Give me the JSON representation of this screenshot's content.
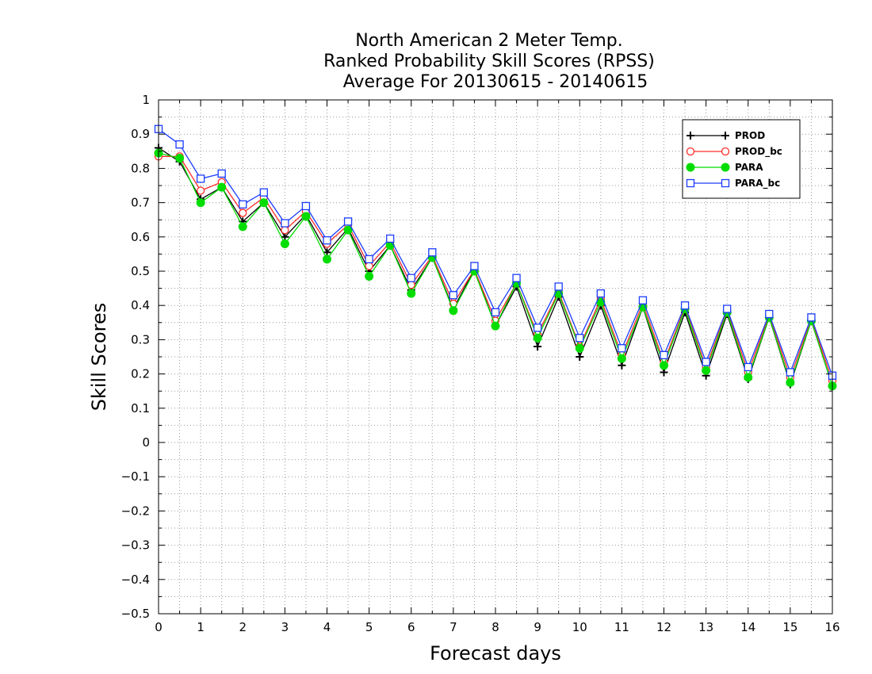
{
  "chart_data": {
    "type": "line",
    "title": [
      "North American 2 Meter Temp.",
      "Ranked Probability Skill Scores (RPSS)",
      "Average For 20130615 - 20140615"
    ],
    "xlabel": "Forecast days",
    "ylabel": "Skill Scores",
    "xlim": [
      0,
      16
    ],
    "ylim": [
      -0.5,
      1
    ],
    "x_ticks": [
      0,
      1,
      2,
      3,
      4,
      5,
      6,
      7,
      8,
      9,
      10,
      11,
      12,
      13,
      14,
      15,
      16
    ],
    "y_ticks": [
      -0.5,
      -0.4,
      -0.3,
      -0.2,
      -0.1,
      0,
      0.1,
      0.2,
      0.3,
      0.4,
      0.5,
      0.6,
      0.7,
      0.8,
      0.9,
      1
    ],
    "x_tick_labels": [
      "0",
      "1",
      "2",
      "3",
      "4",
      "5",
      "6",
      "7",
      "8",
      "9",
      "10",
      "11",
      "12",
      "13",
      "14",
      "15",
      "16"
    ],
    "y_tick_labels": [
      "−0.5",
      "−0.4",
      "−0.3",
      "−0.2",
      "−0.1",
      "0",
      "0.1",
      "0.2",
      "0.3",
      "0.4",
      "0.5",
      "0.6",
      "0.7",
      "0.8",
      "0.9",
      "1"
    ],
    "grid": true,
    "legend_position": "top-right",
    "x": [
      0,
      0.5,
      1,
      1.5,
      2,
      2.5,
      3,
      3.5,
      4,
      4.5,
      5,
      5.5,
      6,
      6.5,
      7,
      7.5,
      8,
      8.5,
      9,
      9.5,
      10,
      10.5,
      11,
      11.5,
      12,
      12.5,
      13,
      13.5,
      14,
      14.5,
      15,
      15.5,
      16
    ],
    "series": [
      {
        "name": "PROD",
        "color": "#000000",
        "marker": "plus",
        "values": [
          0.86,
          0.82,
          0.71,
          0.745,
          0.645,
          0.7,
          0.6,
          0.665,
          0.555,
          0.625,
          0.5,
          0.575,
          0.445,
          0.54,
          0.39,
          0.505,
          0.34,
          0.455,
          0.28,
          0.425,
          0.25,
          0.4,
          0.225,
          0.395,
          0.205,
          0.38,
          0.195,
          0.375,
          0.185,
          0.365,
          0.17,
          0.355,
          0.165
        ]
      },
      {
        "name": "PROD_bc",
        "color": "#ff2a2a",
        "marker": "circle-open",
        "values": [
          0.835,
          0.835,
          0.735,
          0.76,
          0.67,
          0.715,
          0.62,
          0.675,
          0.58,
          0.635,
          0.515,
          0.585,
          0.46,
          0.545,
          0.405,
          0.505,
          0.355,
          0.465,
          0.315,
          0.44,
          0.28,
          0.42,
          0.255,
          0.405,
          0.235,
          0.395,
          0.22,
          0.385,
          0.205,
          0.37,
          0.19,
          0.36,
          0.18
        ]
      },
      {
        "name": "PARA",
        "color": "#00dd00",
        "marker": "circle-filled",
        "values": [
          0.845,
          0.83,
          0.7,
          0.745,
          0.63,
          0.7,
          0.58,
          0.66,
          0.535,
          0.62,
          0.485,
          0.575,
          0.435,
          0.54,
          0.385,
          0.5,
          0.34,
          0.465,
          0.305,
          0.435,
          0.275,
          0.41,
          0.245,
          0.395,
          0.225,
          0.39,
          0.21,
          0.38,
          0.19,
          0.365,
          0.175,
          0.355,
          0.165
        ]
      },
      {
        "name": "PARA_bc",
        "color": "#1a3cff",
        "marker": "square-open",
        "values": [
          0.915,
          0.87,
          0.77,
          0.785,
          0.695,
          0.73,
          0.64,
          0.69,
          0.59,
          0.645,
          0.535,
          0.595,
          0.48,
          0.555,
          0.43,
          0.515,
          0.38,
          0.48,
          0.335,
          0.455,
          0.305,
          0.435,
          0.275,
          0.415,
          0.255,
          0.4,
          0.235,
          0.39,
          0.22,
          0.375,
          0.205,
          0.365,
          0.195
        ]
      }
    ]
  }
}
